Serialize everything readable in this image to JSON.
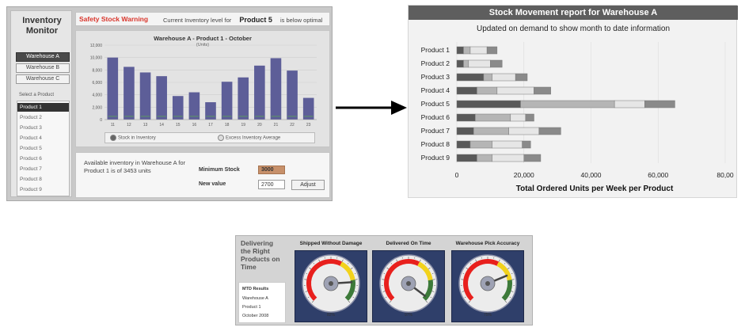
{
  "inventory_monitor": {
    "title": "Inventory Monitor",
    "warehouses": [
      "Warehouse A",
      "Warehouse B",
      "Warehouse C"
    ],
    "selected_warehouse": 0,
    "select_product_label": "Select a Product",
    "products": [
      "Product 1",
      "Product 2",
      "Product 3",
      "Product 4",
      "Product 5",
      "Product 6",
      "Product 7",
      "Product 8",
      "Product 9"
    ],
    "selected_product": 0,
    "warning_title": "Safety Stock Warning",
    "warning_prefix": "Current Inventory level for",
    "warning_product": "Product 5",
    "warning_suffix": "is below optimal",
    "available_text": "Available inventory in Warehouse A for Product 1 is of 3453 units",
    "min_stock_label": "Minimum Stock",
    "min_stock_value": "3000",
    "new_value_label": "New value",
    "new_value": "2700",
    "adjust_label": "Adjust",
    "legend": [
      "Stock in Inventory",
      "Excess Inventory Average"
    ]
  },
  "report": {
    "title": "Stock Movement report for Warehouse A",
    "subtitle": "Updated on demand to show month to date information"
  },
  "delivery": {
    "title": "Delivering the Right Products on Time",
    "mtd_title": "MTD Results",
    "mtd_lines": [
      "Warehouse A",
      "Product 1",
      "October 2008"
    ],
    "gauges": [
      {
        "label": "Shipped Without Damage",
        "value": 82,
        "value_text": "82%"
      },
      {
        "label": "Delivered On Time",
        "value": 97,
        "value_text": "97%"
      },
      {
        "label": "Warehouse Pick Accuracy",
        "value": 75,
        "value_text": "75%"
      }
    ]
  },
  "chart_data": [
    {
      "type": "bar",
      "title": "Warehouse A - Product 1 - October",
      "ylabel": "(Units)",
      "categories": [
        "11",
        "12",
        "13",
        "14",
        "15",
        "16",
        "17",
        "18",
        "19",
        "20",
        "21",
        "22",
        "23"
      ],
      "series": [
        {
          "name": "Stock in Inventory",
          "values": [
            10000,
            8500,
            7600,
            7000,
            3800,
            4400,
            2800,
            6100,
            6800,
            8700,
            9900,
            7900,
            3500
          ]
        },
        {
          "name": "Excess Inventory Average",
          "values": [
            600,
            600,
            600,
            600,
            600,
            600,
            600,
            600,
            600,
            600,
            600,
            600,
            600
          ]
        }
      ],
      "ylim": [
        0,
        12000
      ],
      "yticks": [
        "0",
        "2,000",
        "4,000",
        "6,000",
        "8,000",
        "10,000",
        "12,000"
      ]
    },
    {
      "type": "bar",
      "orientation": "horizontal",
      "stacked": true,
      "title": "Stock Movement report for Warehouse A",
      "xlabel": "Total Ordered Units per Week per Product",
      "categories": [
        "Product 1",
        "Product 2",
        "Product 3",
        "Product 4",
        "Product 5",
        "Product 6",
        "Product 7",
        "Product 8",
        "Product 9"
      ],
      "series": [
        {
          "name": "",
          "color": "#595959",
          "values": [
            2000,
            2000,
            8000,
            6000,
            19000,
            5500,
            5000,
            4000,
            6000
          ]
        },
        {
          "name": "",
          "color": "#b5b5b5",
          "values": [
            2000,
            1500,
            2500,
            6000,
            28000,
            10500,
            10500,
            6500,
            4500
          ]
        },
        {
          "name": "",
          "color": "#e6e6e6",
          "values": [
            5000,
            6500,
            7000,
            11000,
            9000,
            4500,
            9000,
            9000,
            9500
          ]
        },
        {
          "name": "",
          "color": "#8a8a8a",
          "values": [
            3000,
            3500,
            3500,
            5000,
            9000,
            2500,
            6500,
            2500,
            5000
          ]
        }
      ],
      "xlim": [
        0,
        80000
      ],
      "xticks": [
        "0",
        "20,000",
        "40,000",
        "60,000",
        "80,00"
      ]
    }
  ]
}
